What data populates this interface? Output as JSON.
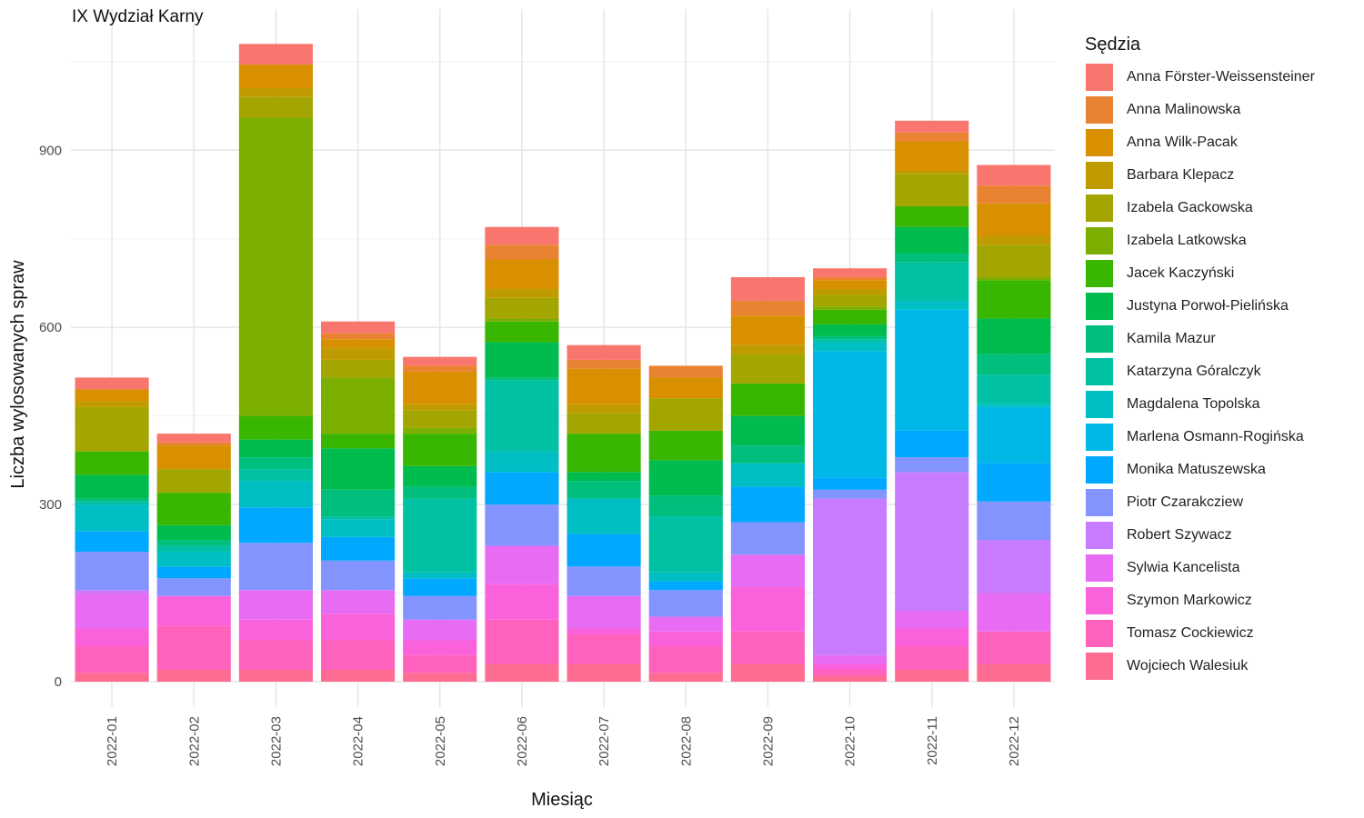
{
  "chart_data": {
    "type": "bar",
    "stacked": true,
    "title": "IX Wydział Karny",
    "xlabel": "Miesiąc",
    "ylabel": "Liczba wylosowanych spraw",
    "ylim": [
      0,
      1100
    ],
    "yticks": [
      0,
      300,
      600,
      900
    ],
    "grid": true,
    "legend_title": "Sędzia",
    "legend_position": "right",
    "categories": [
      "2022-01",
      "2022-02",
      "2022-03",
      "2022-04",
      "2022-05",
      "2022-06",
      "2022-07",
      "2022-08",
      "2022-09",
      "2022-10",
      "2022-11",
      "2022-12"
    ],
    "series": [
      {
        "name": "Anna Förster-Weissensteiner",
        "color": "#F8766D",
        "values": [
          20,
          15,
          35,
          20,
          15,
          30,
          25,
          0,
          40,
          15,
          20,
          35
        ]
      },
      {
        "name": "Anna Malinowska",
        "color": "#EA8331",
        "values": [
          0,
          5,
          0,
          10,
          10,
          25,
          15,
          20,
          25,
          5,
          15,
          30
        ]
      },
      {
        "name": "Anna Wilk-Pacak",
        "color": "#D89000",
        "values": [
          20,
          40,
          40,
          15,
          55,
          50,
          60,
          35,
          50,
          15,
          50,
          55
        ]
      },
      {
        "name": "Barbara Klepacz",
        "color": "#C09B00",
        "values": [
          10,
          0,
          15,
          20,
          10,
          15,
          15,
          0,
          15,
          10,
          5,
          15
        ]
      },
      {
        "name": "Izabela Gackowska",
        "color": "#A3A500",
        "values": [
          75,
          40,
          35,
          30,
          30,
          35,
          35,
          55,
          50,
          20,
          55,
          55
        ]
      },
      {
        "name": "Izabela Latkowska",
        "color": "#7CAE00",
        "values": [
          0,
          0,
          505,
          95,
          10,
          5,
          0,
          0,
          0,
          5,
          0,
          5
        ]
      },
      {
        "name": "Jacek Kaczyński",
        "color": "#39B600",
        "values": [
          40,
          55,
          40,
          25,
          55,
          35,
          65,
          50,
          55,
          25,
          35,
          65
        ]
      },
      {
        "name": "Justyna Porwoł-Pielińska",
        "color": "#00BB4E",
        "values": [
          40,
          25,
          30,
          70,
          35,
          60,
          15,
          60,
          50,
          20,
          45,
          60
        ]
      },
      {
        "name": "Kamila Mazur",
        "color": "#00BF7D",
        "values": [
          5,
          10,
          20,
          45,
          20,
          5,
          30,
          35,
          30,
          5,
          15,
          35
        ]
      },
      {
        "name": "Katarzyna Góralczyk",
        "color": "#00C1A3",
        "values": [
          5,
          10,
          20,
          5,
          125,
          120,
          0,
          95,
          0,
          5,
          65,
          50
        ]
      },
      {
        "name": "Magdalena Topolska",
        "color": "#00BFC4",
        "values": [
          45,
          25,
          45,
          30,
          10,
          35,
          60,
          15,
          40,
          15,
          15,
          5
        ]
      },
      {
        "name": "Marlena Osmann-Rogińska",
        "color": "#00B8E7",
        "values": [
          0,
          0,
          0,
          0,
          0,
          0,
          0,
          0,
          0,
          215,
          205,
          95
        ]
      },
      {
        "name": "Monika Matuszewska",
        "color": "#00A9FF",
        "values": [
          35,
          20,
          60,
          40,
          30,
          55,
          55,
          15,
          60,
          20,
          45,
          65
        ]
      },
      {
        "name": "Piotr Czarakcziew",
        "color": "#8494FF",
        "values": [
          65,
          30,
          80,
          50,
          40,
          70,
          50,
          45,
          55,
          15,
          25,
          65
        ]
      },
      {
        "name": "Robert Szywacz",
        "color": "#C77CFF",
        "values": [
          5,
          0,
          0,
          0,
          0,
          0,
          0,
          0,
          0,
          265,
          235,
          90
        ]
      },
      {
        "name": "Sylwia Kancelista",
        "color": "#E76BF3",
        "values": [
          60,
          0,
          50,
          40,
          35,
          65,
          55,
          25,
          55,
          15,
          30,
          65
        ]
      },
      {
        "name": "Szymon Markowicz",
        "color": "#FA62DB",
        "values": [
          30,
          50,
          35,
          45,
          25,
          60,
          10,
          25,
          75,
          10,
          30,
          0
        ]
      },
      {
        "name": "Tomasz Cockiewicz",
        "color": "#FF62BC",
        "values": [
          45,
          75,
          50,
          50,
          30,
          75,
          50,
          45,
          55,
          10,
          40,
          55
        ]
      },
      {
        "name": "Wojciech Walesiuk",
        "color": "#FF6C91",
        "values": [
          15,
          20,
          20,
          20,
          15,
          30,
          30,
          15,
          30,
          10,
          20,
          30
        ]
      }
    ]
  }
}
